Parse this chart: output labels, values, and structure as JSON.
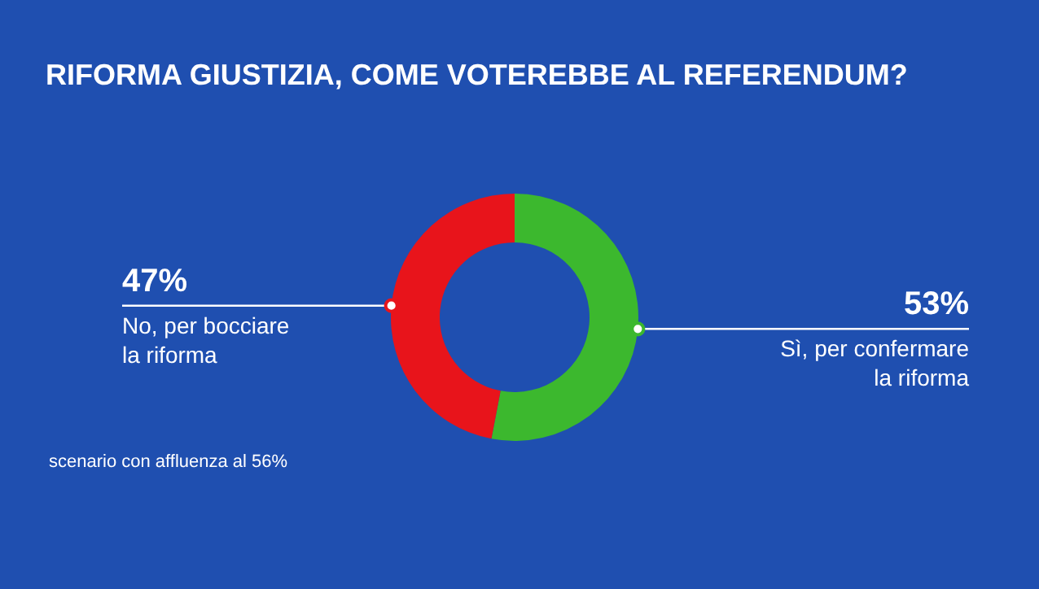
{
  "chart_data": {
    "type": "donut",
    "title": "RIFORMA GIUSTIZIA, COME VOTEREBBE AL REFERENDUM?",
    "categories": [
      "Sì, per confermare la riforma",
      "No, per bocciare la riforma"
    ],
    "values": [
      53,
      47
    ],
    "colors": [
      "#3cb82e",
      "#e8141b"
    ],
    "value_labels": [
      "53%",
      "47%"
    ],
    "annotations": [
      "scenario con affluenza al 56%"
    ]
  }
}
